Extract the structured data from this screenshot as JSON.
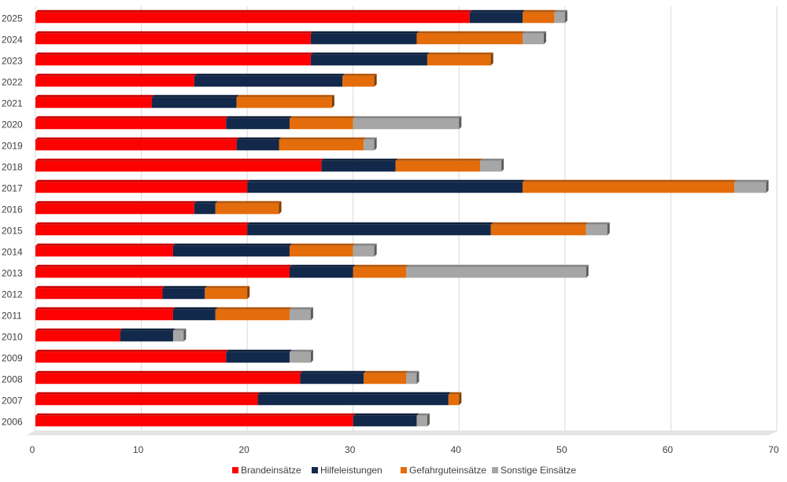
{
  "chart_data": {
    "type": "bar",
    "orientation": "horizontal",
    "stacked": true,
    "title": "",
    "xlabel": "",
    "ylabel": "",
    "xlim": [
      0,
      70
    ],
    "x_ticks": [
      0,
      10,
      20,
      30,
      40,
      50,
      60,
      70
    ],
    "grid": true,
    "legend_position": "bottom",
    "categories": [
      "2006",
      "2007",
      "2008",
      "2009",
      "2010",
      "2011",
      "2012",
      "2013",
      "2014",
      "2015",
      "2016",
      "2017",
      "2018",
      "2019",
      "2020",
      "2021",
      "2022",
      "2023",
      "2024",
      "2025"
    ],
    "series": [
      {
        "name": "Brandeinsätze",
        "color": "#ff0000",
        "values": [
          30,
          21,
          25,
          18,
          8,
          13,
          12,
          24,
          13,
          20,
          15,
          20,
          27,
          19,
          18,
          11,
          15,
          26,
          26,
          41
        ]
      },
      {
        "name": "Hilfeleistungen",
        "color": "#13294b",
        "values": [
          6,
          18,
          6,
          6,
          5,
          4,
          4,
          6,
          11,
          23,
          2,
          26,
          7,
          4,
          6,
          8,
          14,
          11,
          10,
          5
        ]
      },
      {
        "name": "Gefahrguteinsätze",
        "color": "#e46c0a",
        "values": [
          0,
          1,
          4,
          0,
          0,
          7,
          4,
          5,
          6,
          9,
          6,
          20,
          8,
          8,
          6,
          9,
          3,
          6,
          10,
          3
        ]
      },
      {
        "name": "Sonstige Einsätze",
        "color": "#a6a6a6",
        "values": [
          1,
          0,
          1,
          2,
          1,
          2,
          0,
          17,
          2,
          2,
          0,
          3,
          2,
          1,
          10,
          0,
          0,
          0,
          2,
          1
        ]
      }
    ]
  }
}
